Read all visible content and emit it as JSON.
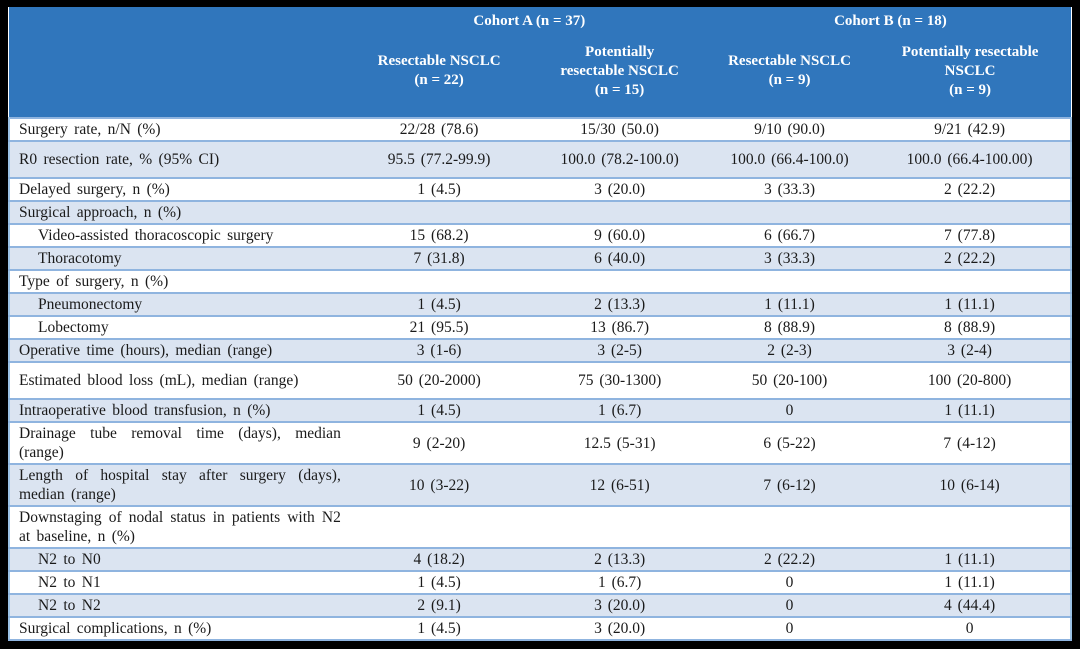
{
  "colors": {
    "frame": "#000000",
    "header_bg": "#3076BC",
    "header_text": "#FFFFFF",
    "stripe": "#DBE4F1",
    "row_border": "#8FB4DF",
    "body_text": "#1A1A1A"
  },
  "table": {
    "header": {
      "groups": [
        {
          "label": "Cohort A (n = 37)",
          "span": 2
        },
        {
          "label": "Cohort B (n = 18)",
          "span": 2
        }
      ],
      "columns": [
        "Resectable NSCLC\n(n = 22)",
        "Potentially\nresectable NSCLC\n(n = 15)",
        "Resectable NSCLC\n(n = 9)",
        "Potentially resectable\nNSCLC\n(n = 9)"
      ]
    },
    "rows": [
      {
        "label": "Surgery rate, n/N (%)",
        "values": [
          "22/28 (78.6)",
          "15/30 (50.0)",
          "9/10 (90.0)",
          "9/21 (42.9)"
        ],
        "indent": false,
        "tall": false
      },
      {
        "label": "R0 resection rate, % (95% CI)",
        "values": [
          "95.5 (77.2-99.9)",
          "100.0 (78.2-100.0)",
          "100.0 (66.4-100.0)",
          "100.0 (66.4-100.00)"
        ],
        "indent": false,
        "tall": true
      },
      {
        "label": "Delayed surgery, n (%)",
        "values": [
          "1 (4.5)",
          "3 (20.0)",
          "3 (33.3)",
          "2 (22.2)"
        ],
        "indent": false,
        "tall": false
      },
      {
        "label": "Surgical approach, n (%)",
        "values": [
          "",
          "",
          "",
          ""
        ],
        "indent": false,
        "tall": false
      },
      {
        "label": "Video-assisted thoracoscopic surgery",
        "values": [
          "15 (68.2)",
          "9 (60.0)",
          "6 (66.7)",
          "7 (77.8)"
        ],
        "indent": true,
        "tall": false
      },
      {
        "label": "Thoracotomy",
        "values": [
          "7 (31.8)",
          "6 (40.0)",
          "3 (33.3)",
          "2 (22.2)"
        ],
        "indent": true,
        "tall": false
      },
      {
        "label": "Type of surgery, n (%)",
        "values": [
          "",
          "",
          "",
          ""
        ],
        "indent": false,
        "tall": false
      },
      {
        "label": "Pneumonectomy",
        "values": [
          "1 (4.5)",
          "2 (13.3)",
          "1 (11.1)",
          "1 (11.1)"
        ],
        "indent": true,
        "tall": false
      },
      {
        "label": "Lobectomy",
        "values": [
          "21 (95.5)",
          "13 (86.7)",
          "8 (88.9)",
          "8 (88.9)"
        ],
        "indent": true,
        "tall": false
      },
      {
        "label": "Operative time (hours), median (range)",
        "values": [
          "3 (1-6)",
          "3 (2-5)",
          "2 (2-3)",
          "3 (2-4)"
        ],
        "indent": false,
        "tall": false
      },
      {
        "label": "Estimated blood loss (mL), median (range)",
        "values": [
          "50 (20-2000)",
          "75 (30-1300)",
          "50 (20-100)",
          "100 (20-800)"
        ],
        "indent": false,
        "tall": true
      },
      {
        "label": "Intraoperative blood transfusion, n (%)",
        "values": [
          "1 (4.5)",
          "1 (6.7)",
          "0",
          "1 (11.1)"
        ],
        "indent": false,
        "tall": false
      },
      {
        "label": "Drainage tube removal time (days), median (range)",
        "values": [
          "9 (2-20)",
          "12.5 (5-31)",
          "6 (5-22)",
          "7 (4-12)"
        ],
        "indent": false,
        "tall": false
      },
      {
        "label": "Length of hospital stay after surgery (days), median (range)",
        "values": [
          "10 (3-22)",
          "12 (6-51)",
          "7 (6-12)",
          "10 (6-14)"
        ],
        "indent": false,
        "tall": false
      },
      {
        "label": "Downstaging of nodal status in patients with N2 at baseline, n (%)",
        "values": [
          "",
          "",
          "",
          ""
        ],
        "indent": false,
        "tall": false
      },
      {
        "label": "N2 to N0",
        "values": [
          "4 (18.2)",
          "2 (13.3)",
          "2 (22.2)",
          "1 (11.1)"
        ],
        "indent": true,
        "tall": false
      },
      {
        "label": "N2 to N1",
        "values": [
          "1 (4.5)",
          "1 (6.7)",
          "0",
          "1 (11.1)"
        ],
        "indent": true,
        "tall": false
      },
      {
        "label": "N2 to N2",
        "values": [
          "2 (9.1)",
          "3 (20.0)",
          "0",
          "4 (44.4)"
        ],
        "indent": true,
        "tall": false
      },
      {
        "label": "Surgical complications, n (%)",
        "values": [
          "1 (4.5)",
          "3 (20.0)",
          "0",
          "0"
        ],
        "indent": false,
        "tall": false
      }
    ]
  }
}
